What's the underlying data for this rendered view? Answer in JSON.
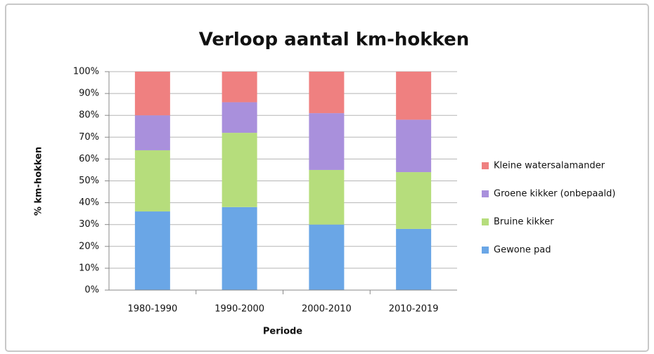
{
  "chart_data": {
    "type": "stacked_bar",
    "title": "Verloop aantal km-hokken",
    "xlabel": "Periode",
    "ylabel": "% km-hokken",
    "categories": [
      "1980-1990",
      "1990-2000",
      "2000-2010",
      "2010-2019"
    ],
    "series": [
      {
        "name": "Gewone pad",
        "color": "#6aa6e6",
        "values": [
          36,
          38,
          30,
          28
        ]
      },
      {
        "name": "Bruine kikker",
        "color": "#b6dd7c",
        "values": [
          28,
          34,
          25,
          26
        ]
      },
      {
        "name": "Groene kikker (onbepaald)",
        "color": "#a990dc",
        "values": [
          16,
          14,
          26,
          24
        ]
      },
      {
        "name": "Kleine watersalamander",
        "color": "#ef8080",
        "values": [
          20,
          14,
          19,
          22
        ]
      }
    ],
    "ylim": [
      0,
      100
    ],
    "yticks": [
      {
        "value": 0,
        "label": "0%"
      },
      {
        "value": 10,
        "label": "10%"
      },
      {
        "value": 20,
        "label": "20%"
      },
      {
        "value": 30,
        "label": "30%"
      },
      {
        "value": 40,
        "label": "40%"
      },
      {
        "value": 50,
        "label": "50%"
      },
      {
        "value": 60,
        "label": "60%"
      },
      {
        "value": 70,
        "label": "70%"
      },
      {
        "value": 80,
        "label": "80%"
      },
      {
        "value": 90,
        "label": "90%"
      },
      {
        "value": 100,
        "label": "100%"
      }
    ],
    "grid": true,
    "legend": "right"
  }
}
